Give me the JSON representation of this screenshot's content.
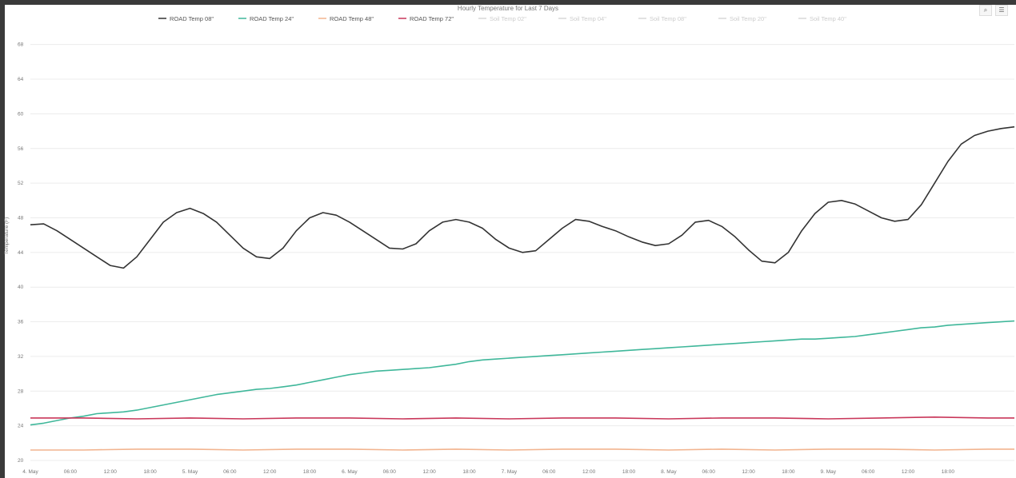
{
  "chart_data": {
    "type": "line",
    "title": "Hourly Temperature for Last 7 Days",
    "ylabel": "Temperature (F)",
    "ylim": [
      20,
      70
    ],
    "y_ticks": [
      20,
      24,
      28,
      32,
      36,
      40,
      44,
      48,
      52,
      56,
      60,
      64,
      68
    ],
    "y_tick_labels": [
      "20",
      "24",
      "28",
      "32",
      "36",
      "40",
      "44",
      "48",
      "52",
      "56",
      "60",
      "64",
      "68"
    ],
    "x_ticks": [
      0,
      6,
      12,
      18,
      24,
      30,
      36,
      42,
      48,
      54,
      60,
      66,
      72,
      78,
      84,
      90,
      96,
      102,
      108,
      114,
      120,
      126,
      132,
      138
    ],
    "x_tick_labels": [
      "4. May",
      "06:00",
      "12:00",
      "18:00",
      "5. May",
      "06:00",
      "12:00",
      "18:00",
      "6. May",
      "06:00",
      "12:00",
      "18:00",
      "7. May",
      "06:00",
      "12:00",
      "18:00",
      "8. May",
      "06:00",
      "12:00",
      "18:00",
      "9. May",
      "06:00",
      "12:00",
      "18:00"
    ],
    "x_unit": "hours since 4. May 00:00",
    "xlim": [
      0,
      148
    ],
    "grid": true,
    "legend_position": "top",
    "series": [
      {
        "name": "ROAD Temp 08\"",
        "color": "#333333",
        "visible": true,
        "x": [
          0,
          2,
          4,
          6,
          8,
          10,
          12,
          14,
          16,
          18,
          20,
          22,
          24,
          26,
          28,
          30,
          32,
          34,
          36,
          38,
          40,
          42,
          44,
          46,
          48,
          50,
          52,
          54,
          56,
          58,
          60,
          62,
          64,
          66,
          68,
          70,
          72,
          74,
          76,
          78,
          80,
          82,
          84,
          86,
          88,
          90,
          92,
          94,
          96,
          98,
          100,
          102,
          104,
          106,
          108,
          110,
          112,
          114,
          116,
          118,
          120,
          122,
          124,
          126,
          128,
          130,
          132,
          134,
          136,
          138,
          140,
          142,
          144,
          146,
          148
        ],
        "values": [
          47.2,
          47.3,
          46.5,
          45.5,
          44.5,
          43.5,
          42.5,
          42.2,
          43.5,
          45.5,
          47.5,
          48.6,
          49.1,
          48.5,
          47.5,
          46,
          44.5,
          43.5,
          43.3,
          44.5,
          46.5,
          48,
          48.6,
          48.3,
          47.5,
          46.5,
          45.5,
          44.5,
          44.4,
          45,
          46.5,
          47.5,
          47.8,
          47.5,
          46.8,
          45.5,
          44.5,
          44,
          44.2,
          45.5,
          46.8,
          47.8,
          47.6,
          47,
          46.5,
          45.8,
          45.2,
          44.8,
          45,
          46,
          47.5,
          47.7,
          47,
          45.8,
          44.3,
          43,
          42.8,
          44,
          46.5,
          48.5,
          49.8,
          50,
          49.6,
          48.8,
          48,
          47.6,
          47.8,
          49.5,
          52,
          54.5,
          56.5,
          57.5,
          58,
          58.3,
          58.5
        ]
      },
      {
        "name": "ROAD Temp 24\"",
        "color": "#3fb79a",
        "visible": true,
        "x": [
          0,
          2,
          4,
          6,
          8,
          10,
          12,
          14,
          16,
          18,
          20,
          22,
          24,
          26,
          28,
          30,
          32,
          34,
          36,
          38,
          40,
          42,
          44,
          46,
          48,
          50,
          52,
          54,
          56,
          58,
          60,
          62,
          64,
          66,
          68,
          70,
          72,
          74,
          76,
          78,
          80,
          82,
          84,
          86,
          88,
          90,
          92,
          94,
          96,
          98,
          100,
          102,
          104,
          106,
          108,
          110,
          112,
          114,
          116,
          118,
          120,
          122,
          124,
          126,
          128,
          130,
          132,
          134,
          136,
          138,
          140,
          142,
          144,
          146,
          148
        ],
        "values": [
          24.1,
          24.3,
          24.6,
          24.9,
          25.1,
          25.4,
          25.5,
          25.6,
          25.8,
          26.1,
          26.4,
          26.7,
          27,
          27.3,
          27.6,
          27.8,
          28,
          28.2,
          28.3,
          28.5,
          28.7,
          29,
          29.3,
          29.6,
          29.9,
          30.1,
          30.3,
          30.4,
          30.5,
          30.6,
          30.7,
          30.9,
          31.1,
          31.4,
          31.6,
          31.7,
          31.8,
          31.9,
          32,
          32.1,
          32.2,
          32.3,
          32.4,
          32.5,
          32.6,
          32.7,
          32.8,
          32.9,
          33,
          33.1,
          33.2,
          33.3,
          33.4,
          33.5,
          33.6,
          33.7,
          33.8,
          33.9,
          34,
          34,
          34.1,
          34.2,
          34.3,
          34.5,
          34.7,
          34.9,
          35.1,
          35.3,
          35.4,
          35.6,
          35.7,
          35.8,
          35.9,
          36,
          36.1
        ]
      },
      {
        "name": "ROAD Temp 48\"",
        "color": "#f2b48f",
        "visible": true,
        "x": [
          0,
          8,
          16,
          24,
          32,
          40,
          48,
          56,
          64,
          72,
          80,
          88,
          96,
          104,
          112,
          120,
          128,
          136,
          144,
          148
        ],
        "values": [
          21.2,
          21.2,
          21.3,
          21.3,
          21.2,
          21.3,
          21.3,
          21.2,
          21.3,
          21.2,
          21.3,
          21.3,
          21.2,
          21.3,
          21.2,
          21.3,
          21.3,
          21.2,
          21.3,
          21.3
        ]
      },
      {
        "name": "ROAD Temp 72\"",
        "color": "#c9375a",
        "visible": true,
        "x": [
          0,
          8,
          16,
          24,
          32,
          40,
          48,
          56,
          64,
          72,
          80,
          88,
          96,
          104,
          112,
          120,
          128,
          136,
          144,
          148
        ],
        "values": [
          24.9,
          24.9,
          24.8,
          24.9,
          24.8,
          24.9,
          24.9,
          24.8,
          24.9,
          24.8,
          24.9,
          24.9,
          24.8,
          24.9,
          24.9,
          24.8,
          24.9,
          25,
          24.9,
          24.9
        ]
      },
      {
        "name": "Soil Temp 02\"",
        "color": "#cccccc",
        "visible": false
      },
      {
        "name": "Soil Temp 04\"",
        "color": "#cccccc",
        "visible": false
      },
      {
        "name": "Soil Temp 08\"",
        "color": "#cccccc",
        "visible": false
      },
      {
        "name": "Soil Temp 20\"",
        "color": "#cccccc",
        "visible": false
      },
      {
        "name": "Soil Temp 40\"",
        "color": "#cccccc",
        "visible": false
      }
    ]
  },
  "toolbar": {
    "zoom_icon": "magnifier-icon",
    "menu_icon": "menu-icon"
  }
}
